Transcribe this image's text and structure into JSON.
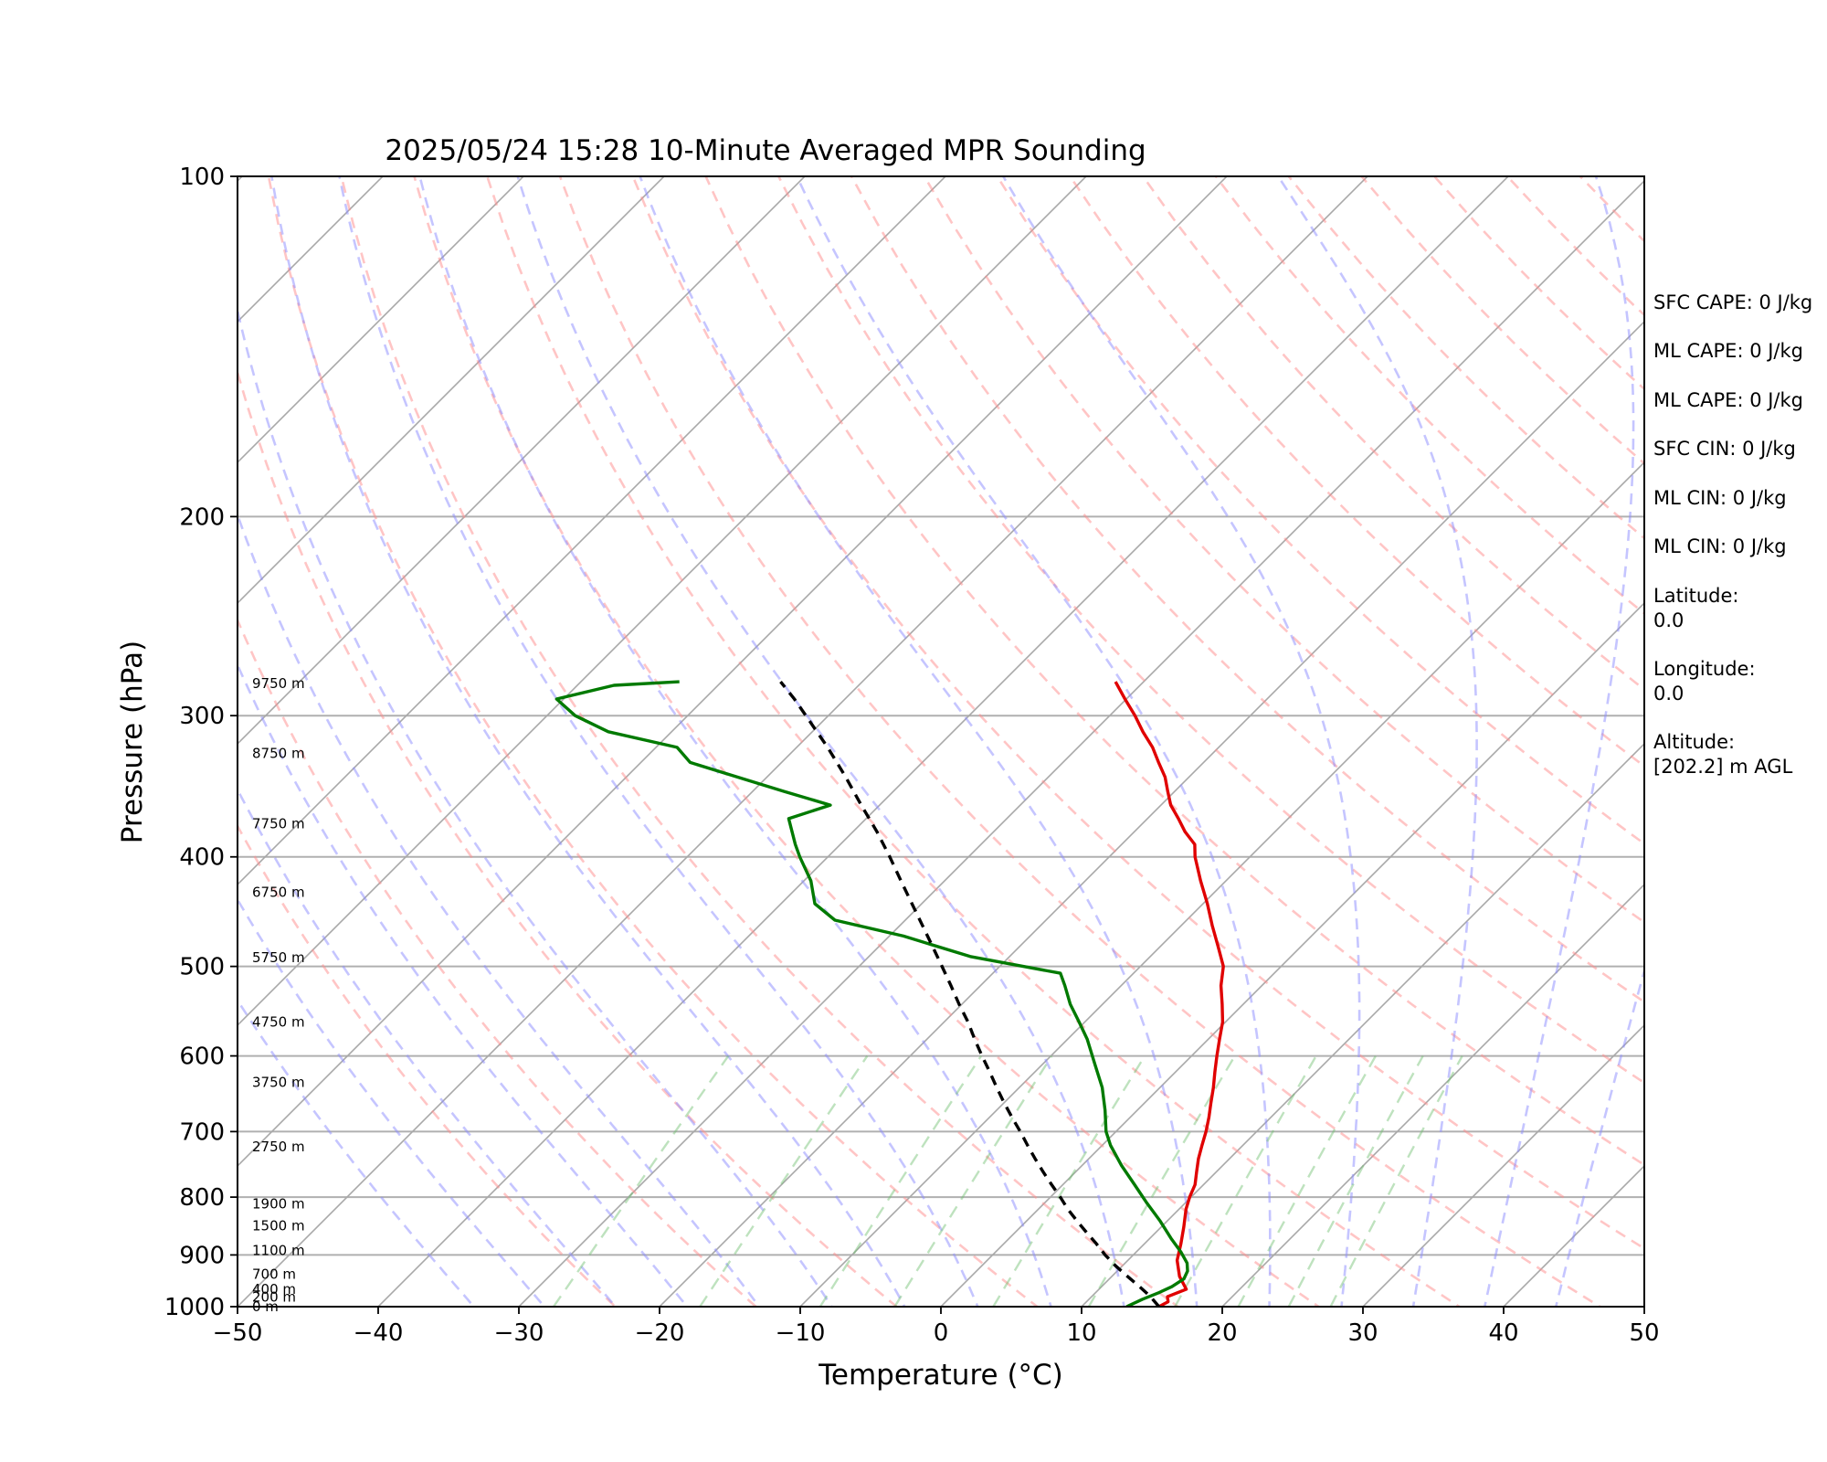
{
  "chart_data": {
    "type": "line",
    "subtype": "skew-T log-P sounding",
    "title": "2025/05/24 15:28 10-Minute Averaged MPR Sounding",
    "xlabel": "Temperature (°C)",
    "ylabel": "Pressure (hPa)",
    "xlim": [
      -50,
      50
    ],
    "ylim": [
      1000,
      100
    ],
    "y_scale": "log",
    "x_ticks": [
      "−50",
      "−40",
      "−30",
      "−20",
      "−10",
      "0",
      "10",
      "20",
      "30",
      "40",
      "50"
    ],
    "y_ticks": [
      "100",
      "200",
      "300",
      "400",
      "500",
      "600",
      "700",
      "800",
      "900",
      "1000"
    ],
    "grid": true,
    "height_labels": [
      {
        "label": "0 m",
        "p": 1000
      },
      {
        "label": "200 m",
        "p": 981
      },
      {
        "label": "400 m",
        "p": 965
      },
      {
        "label": "700 m",
        "p": 936
      },
      {
        "label": "1100 m",
        "p": 892
      },
      {
        "label": "1500 m",
        "p": 848
      },
      {
        "label": "1900 m",
        "p": 811
      },
      {
        "label": "2750 m",
        "p": 722
      },
      {
        "label": "3750 m",
        "p": 633
      },
      {
        "label": "4750 m",
        "p": 560
      },
      {
        "label": "5750 m",
        "p": 491
      },
      {
        "label": "6750 m",
        "p": 430
      },
      {
        "label": "7750 m",
        "p": 374
      },
      {
        "label": "8750 m",
        "p": 324
      },
      {
        "label": "9750 m",
        "p": 281
      }
    ],
    "series": [
      {
        "role": "temperature",
        "color": "#e00000",
        "p": [
          1000,
          990,
          980,
          965,
          940,
          910,
          880,
          850,
          820,
          800,
          780,
          760,
          740,
          720,
          700,
          680,
          660,
          640,
          620,
          600,
          580,
          560,
          540,
          520,
          500,
          480,
          460,
          440,
          420,
          400,
          390,
          380,
          370,
          360,
          350,
          340,
          330,
          320,
          310,
          300,
          290,
          280
        ],
        "t": [
          15.5,
          15.8,
          15.4,
          16.2,
          14.8,
          13.5,
          12.6,
          11.6,
          10.5,
          9.9,
          9.4,
          8.6,
          7.8,
          7.1,
          6.4,
          5.6,
          4.7,
          3.8,
          2.8,
          1.8,
          0.8,
          -0.2,
          -1.5,
          -2.9,
          -4.1,
          -5.9,
          -7.8,
          -9.7,
          -11.8,
          -13.9,
          -14.8,
          -16.4,
          -17.8,
          -19.3,
          -20.5,
          -21.7,
          -23.2,
          -24.7,
          -26.5,
          -28.2,
          -30.1,
          -32.0
        ]
      },
      {
        "role": "dewpoint",
        "color": "#007a00",
        "p": [
          1000,
          995,
          985,
          972,
          960,
          945,
          930,
          915,
          895,
          870,
          840,
          810,
          780,
          750,
          720,
          700,
          670,
          640,
          610,
          580,
          560,
          540,
          520,
          507,
          490,
          470,
          455,
          440,
          420,
          400,
          390,
          370,
          360,
          350,
          340,
          330,
          320,
          310,
          300,
          290,
          282,
          280
        ],
        "t": [
          13.2,
          13.4,
          13.8,
          14.5,
          15.0,
          15.3,
          15.0,
          14.4,
          13.2,
          11.5,
          9.5,
          7.3,
          5.1,
          2.8,
          0.6,
          -0.7,
          -2.3,
          -4.1,
          -6.3,
          -8.6,
          -10.4,
          -12.3,
          -14.0,
          -15.2,
          -22.8,
          -29.0,
          -35.0,
          -37.6,
          -39.5,
          -42.0,
          -43.2,
          -45.5,
          -43.5,
          -47.8,
          -52.1,
          -56.5,
          -58.5,
          -64.5,
          -68.0,
          -70.5,
          -67.4,
          -63.0
        ]
      },
      {
        "role": "parcel",
        "color": "#000000",
        "style": "dashed",
        "p": [
          1000,
          980,
          960,
          940,
          920,
          900,
          880,
          860,
          840,
          820,
          800,
          780,
          760,
          740,
          720,
          700,
          680,
          660,
          640,
          620,
          600,
          580,
          560,
          540,
          520,
          500,
          480,
          460,
          440,
          420,
          400,
          380,
          360,
          340,
          320,
          300,
          290,
          280
        ],
        "t": [
          15.5,
          14.2,
          12.7,
          11.1,
          9.5,
          8.0,
          6.6,
          5.1,
          3.6,
          2.1,
          0.7,
          -0.8,
          -2.3,
          -3.8,
          -5.3,
          -6.8,
          -8.4,
          -10.0,
          -11.6,
          -13.2,
          -14.9,
          -16.6,
          -18.3,
          -20.2,
          -22.1,
          -24.1,
          -26.2,
          -28.4,
          -30.7,
          -33.1,
          -35.6,
          -38.3,
          -41.3,
          -44.4,
          -47.8,
          -51.6,
          -53.6,
          -55.8
        ]
      }
    ]
  },
  "info_panel": {
    "sfc_cape": "SFC CAPE: 0 J/kg",
    "ml_cape_1": "ML CAPE: 0 J/kg",
    "ml_cape_2": "ML CAPE: 0 J/kg",
    "sfc_cin": "SFC CIN: 0 J/kg",
    "ml_cin_1": "ML CIN: 0 J/kg",
    "ml_cin_2": "ML CIN: 0 J/kg",
    "latitude": "Latitude:\n0.0",
    "longitude": "Longitude:\n0.0",
    "altitude": "Altitude:\n[202.2] m AGL"
  }
}
